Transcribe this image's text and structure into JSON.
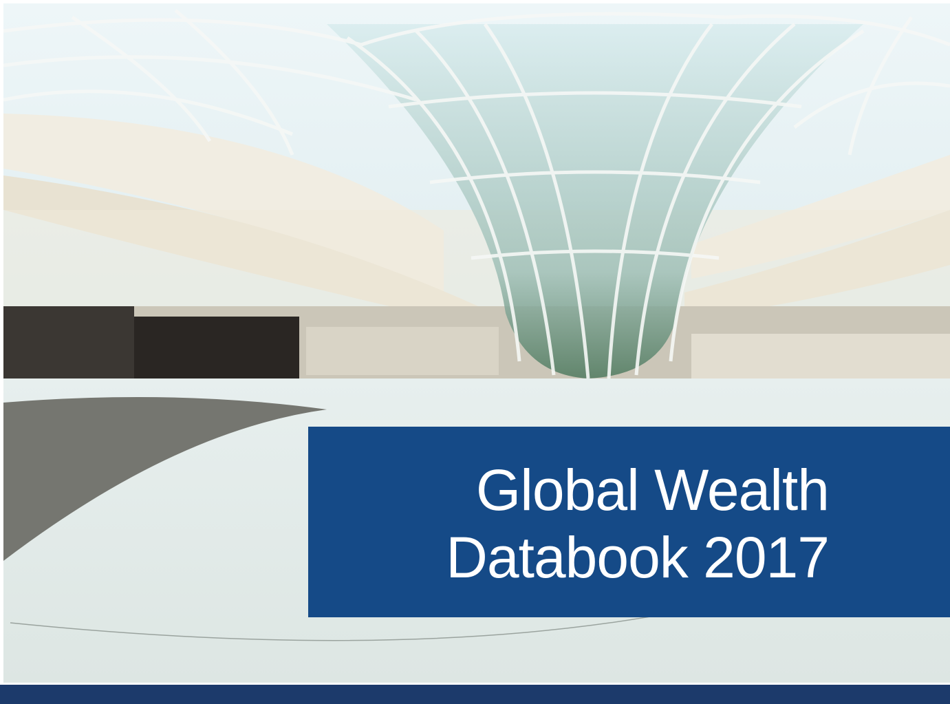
{
  "cover": {
    "title_lines": [
      "Global Wealth",
      "Databook 2017"
    ]
  }
}
